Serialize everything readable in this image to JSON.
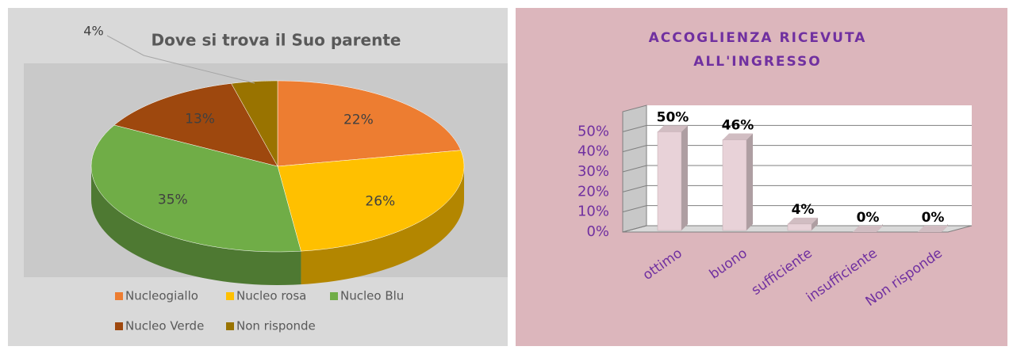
{
  "chart_data": [
    {
      "type": "pie",
      "title": "Dove si trova il Suo parente",
      "categories": [
        "Nucleogiallo",
        "Nucleo rosa",
        "Nucleo Blu",
        "Nucleo Verde",
        "Non risponde"
      ],
      "values": [
        22,
        26,
        35,
        13,
        4
      ],
      "value_labels": [
        "22%",
        "26%",
        "35%",
        "13%",
        "4%"
      ],
      "colors": [
        "#ed7d31",
        "#ffc000",
        "#70ad47",
        "#9e480e",
        "#997300"
      ],
      "legend": "bottom"
    },
    {
      "type": "bar",
      "title": [
        "ACCOGLIENZA RICEVUTA",
        "ALL'INGRESSO"
      ],
      "categories": [
        "ottimo",
        "buono",
        "sufficiente",
        "insufficiente",
        "Non risponde"
      ],
      "values": [
        50,
        46,
        4,
        0,
        0
      ],
      "value_labels": [
        "50%",
        "46%",
        "4%",
        "0%",
        "0%"
      ],
      "color": "#e8d2d8",
      "ylim": [
        0,
        60
      ],
      "yticks": [
        {
          "value": 0,
          "label": "0%"
        },
        {
          "value": 10,
          "label": "10%"
        },
        {
          "value": 20,
          "label": "20%"
        },
        {
          "value": 30,
          "label": "30%"
        },
        {
          "value": 40,
          "label": "40%"
        },
        {
          "value": 50,
          "label": "50%"
        }
      ],
      "grid": true
    }
  ]
}
